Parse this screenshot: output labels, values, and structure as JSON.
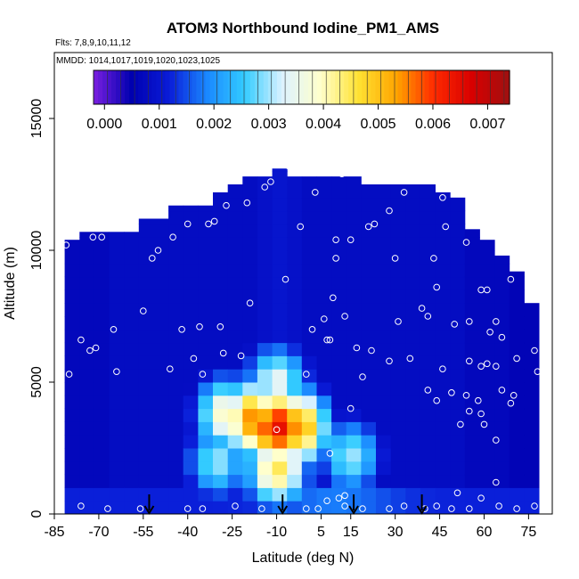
{
  "chart_data": {
    "type": "heatmap",
    "title": "ATOM3 Northbound Iodine_PM1_AMS",
    "flights_label": "Flts: 7,8,9,10,11,12",
    "dates_label": "MMDD: 1014,1017,1019,1020,1023,1025",
    "xlabel": "Latitude (deg N)",
    "ylabel": "Altitude (m)",
    "xlim": [
      -85,
      83
    ],
    "ylim": [
      0,
      17500
    ],
    "x_ticks": [
      -85,
      -70,
      -55,
      -40,
      -25,
      -10,
      5,
      15,
      30,
      45,
      60,
      75
    ],
    "y_ticks": [
      0,
      5000,
      10000,
      15000
    ],
    "colorbar": {
      "range": [
        -0.0002,
        0.0074
      ],
      "ticks": [
        "0.000",
        "0.001",
        "0.002",
        "0.003",
        "0.004",
        "0.005",
        "0.006",
        "0.007"
      ],
      "tick_values": [
        0,
        0.001,
        0.002,
        0.003,
        0.004,
        0.005,
        0.006,
        0.007
      ],
      "colors": [
        "#7a1fe0",
        "#0000b0",
        "#0a1cd8",
        "#1a88ff",
        "#33ccff",
        "#ddf2ff",
        "#ffffcc",
        "#ffe233",
        "#ffa500",
        "#ff2a00",
        "#d80000",
        "#a01010"
      ]
    },
    "colored_columns": [
      {
        "lat": -79,
        "top": 10400,
        "value": 0.0007
      },
      {
        "lat": -74,
        "top": 10700,
        "value": 0.0007
      },
      {
        "lat": -69,
        "top": 10700,
        "value": 0.0007
      },
      {
        "lat": -64,
        "top": 10700,
        "value": 0.0008
      },
      {
        "lat": -59,
        "top": 10700,
        "value": 0.0008
      },
      {
        "lat": -54,
        "top": 11200,
        "value": 0.0008
      },
      {
        "lat": -49,
        "top": 11200,
        "value": 0.0008
      },
      {
        "lat": -44,
        "top": 11700,
        "value": 0.0008
      },
      {
        "lat": -39,
        "top": 11700,
        "value": 0.0008
      },
      {
        "lat": -34,
        "top": 11700,
        "value": 0.0008
      },
      {
        "lat": -29,
        "top": 12200,
        "value": 0.0008
      },
      {
        "lat": -24,
        "top": 12500,
        "value": 0.0008
      },
      {
        "lat": -19,
        "top": 12800,
        "value": 0.0008
      },
      {
        "lat": -14,
        "top": 12800,
        "value": 0.0009
      },
      {
        "lat": -9,
        "top": 13100,
        "value": 0.001
      },
      {
        "lat": -4,
        "top": 12800,
        "value": 0.0009
      },
      {
        "lat": 1,
        "top": 12800,
        "value": 0.0008
      },
      {
        "lat": 6,
        "top": 12800,
        "value": 0.0008
      },
      {
        "lat": 11,
        "top": 12800,
        "value": 0.0008
      },
      {
        "lat": 16,
        "top": 12800,
        "value": 0.0008
      },
      {
        "lat": 21,
        "top": 12500,
        "value": 0.0008
      },
      {
        "lat": 26,
        "top": 12500,
        "value": 0.0008
      },
      {
        "lat": 31,
        "top": 12500,
        "value": 0.0008
      },
      {
        "lat": 36,
        "top": 12500,
        "value": 0.0008
      },
      {
        "lat": 41,
        "top": 12500,
        "value": 0.0008
      },
      {
        "lat": 46,
        "top": 12200,
        "value": 0.0008
      },
      {
        "lat": 51,
        "top": 12000,
        "value": 0.0008
      },
      {
        "lat": 56,
        "top": 10800,
        "value": 0.0007
      },
      {
        "lat": 61,
        "top": 10400,
        "value": 0.0007
      },
      {
        "lat": 66,
        "top": 9800,
        "value": 0.0007
      },
      {
        "lat": 71,
        "top": 9200,
        "value": 0.0006
      },
      {
        "lat": 76,
        "top": 8000,
        "value": 0.0006
      }
    ],
    "hotspots": [
      {
        "lat": -10,
        "alt": 3300,
        "value": 0.0065
      },
      {
        "lat": -18,
        "alt": 3600,
        "value": 0.0055
      },
      {
        "lat": -3,
        "alt": 3300,
        "value": 0.0055
      },
      {
        "lat": -27,
        "alt": 3800,
        "value": 0.004
      },
      {
        "lat": -10,
        "alt": 1700,
        "value": 0.0045
      },
      {
        "lat": -10,
        "alt": 5000,
        "value": 0.0035
      },
      {
        "lat": 15,
        "alt": 2200,
        "value": 0.003
      },
      {
        "lat": -30,
        "alt": 2000,
        "value": 0.003
      }
    ],
    "sample_points": [
      {
        "lat": -81,
        "alt": 10200
      },
      {
        "lat": -72,
        "alt": 10500
      },
      {
        "lat": -69,
        "alt": 10500
      },
      {
        "lat": -52,
        "alt": 9700
      },
      {
        "lat": -50,
        "alt": 10000
      },
      {
        "lat": -45,
        "alt": 10500
      },
      {
        "lat": -40,
        "alt": 11000
      },
      {
        "lat": -33,
        "alt": 11000
      },
      {
        "lat": -31,
        "alt": 11100
      },
      {
        "lat": -27,
        "alt": 11700
      },
      {
        "lat": -20,
        "alt": 11800
      },
      {
        "lat": -14,
        "alt": 12400
      },
      {
        "lat": -12,
        "alt": 12600
      },
      {
        "lat": -55,
        "alt": 11800
      },
      {
        "lat": -6,
        "alt": 13200
      },
      {
        "lat": 3,
        "alt": 12200
      },
      {
        "lat": 12,
        "alt": 12900
      },
      {
        "lat": 21,
        "alt": 10900
      },
      {
        "lat": 23,
        "alt": 11000
      },
      {
        "lat": 28,
        "alt": 11500
      },
      {
        "lat": 33,
        "alt": 12200
      },
      {
        "lat": 46,
        "alt": 12000
      },
      {
        "lat": -2,
        "alt": 10900
      },
      {
        "lat": 10,
        "alt": 10400
      },
      {
        "lat": 15,
        "alt": 10400
      },
      {
        "lat": 10,
        "alt": 9700
      },
      {
        "lat": 30,
        "alt": 9700
      },
      {
        "lat": 43,
        "alt": 9700
      },
      {
        "lat": 47,
        "alt": 10900
      },
      {
        "lat": 54,
        "alt": 10300
      },
      {
        "lat": -7,
        "alt": 8900
      },
      {
        "lat": 9,
        "alt": 8200
      },
      {
        "lat": 44,
        "alt": 8600
      },
      {
        "lat": 59,
        "alt": 8500
      },
      {
        "lat": 61,
        "alt": 8500
      },
      {
        "lat": 69,
        "alt": 8900
      },
      {
        "lat": -84,
        "alt": 7800
      },
      {
        "lat": -65,
        "alt": 7000
      },
      {
        "lat": -55,
        "alt": 7700
      },
      {
        "lat": -42,
        "alt": 7000
      },
      {
        "lat": -36,
        "alt": 7100
      },
      {
        "lat": -29,
        "alt": 7100
      },
      {
        "lat": -19,
        "alt": 8000
      },
      {
        "lat": 2,
        "alt": 7000
      },
      {
        "lat": 6,
        "alt": 7400
      },
      {
        "lat": 13,
        "alt": 7500
      },
      {
        "lat": 31,
        "alt": 7300
      },
      {
        "lat": 39,
        "alt": 7800
      },
      {
        "lat": 41,
        "alt": 7500
      },
      {
        "lat": 50,
        "alt": 7200
      },
      {
        "lat": 55,
        "alt": 7300
      },
      {
        "lat": 62,
        "alt": 6900
      },
      {
        "lat": 64,
        "alt": 7300
      },
      {
        "lat": 66,
        "alt": 6700
      },
      {
        "lat": -76,
        "alt": 6600
      },
      {
        "lat": -73,
        "alt": 6200
      },
      {
        "lat": -71,
        "alt": 6300
      },
      {
        "lat": -28,
        "alt": 6100
      },
      {
        "lat": -22,
        "alt": 6000
      },
      {
        "lat": -38,
        "alt": 5900
      },
      {
        "lat": -46,
        "alt": 5500
      },
      {
        "lat": 7,
        "alt": 6600
      },
      {
        "lat": 8,
        "alt": 6600
      },
      {
        "lat": 17,
        "alt": 6300
      },
      {
        "lat": 22,
        "alt": 6200
      },
      {
        "lat": 28,
        "alt": 5800
      },
      {
        "lat": 35,
        "alt": 5900
      },
      {
        "lat": 46,
        "alt": 5500
      },
      {
        "lat": 55,
        "alt": 5800
      },
      {
        "lat": 59,
        "alt": 5600
      },
      {
        "lat": 61,
        "alt": 5700
      },
      {
        "lat": 64,
        "alt": 5600
      },
      {
        "lat": 71,
        "alt": 5900
      },
      {
        "lat": 77,
        "alt": 6200
      },
      {
        "lat": -80,
        "alt": 5300
      },
      {
        "lat": -64,
        "alt": 5400
      },
      {
        "lat": -35,
        "alt": 5300
      },
      {
        "lat": 0,
        "alt": 5300
      },
      {
        "lat": 19,
        "alt": 5200
      },
      {
        "lat": 41,
        "alt": 4700
      },
      {
        "lat": 49,
        "alt": 4600
      },
      {
        "lat": 54,
        "alt": 4500
      },
      {
        "lat": 58,
        "alt": 4300
      },
      {
        "lat": 66,
        "alt": 4700
      },
      {
        "lat": 70,
        "alt": 4500
      },
      {
        "lat": 15,
        "alt": 4000
      },
      {
        "lat": 44,
        "alt": 4300
      },
      {
        "lat": 55,
        "alt": 3900
      },
      {
        "lat": 59,
        "alt": 3800
      },
      {
        "lat": 69,
        "alt": 4200
      },
      {
        "lat": 78,
        "alt": 5400
      },
      {
        "lat": 52,
        "alt": 3400
      },
      {
        "lat": 60,
        "alt": 3400
      },
      {
        "lat": -10,
        "alt": 3200
      },
      {
        "lat": 8,
        "alt": 2300
      },
      {
        "lat": 64,
        "alt": 2800
      },
      {
        "lat": 64,
        "alt": 1200
      },
      {
        "lat": -76,
        "alt": 300
      },
      {
        "lat": -67,
        "alt": 200
      },
      {
        "lat": -56,
        "alt": 200
      },
      {
        "lat": -40,
        "alt": 200
      },
      {
        "lat": -35,
        "alt": 200
      },
      {
        "lat": -24,
        "alt": 300
      },
      {
        "lat": -15,
        "alt": 200
      },
      {
        "lat": 0,
        "alt": 200
      },
      {
        "lat": 7,
        "alt": 500
      },
      {
        "lat": 11,
        "alt": 600
      },
      {
        "lat": 13,
        "alt": 700
      },
      {
        "lat": 13,
        "alt": 300
      },
      {
        "lat": 19,
        "alt": 200
      },
      {
        "lat": 28,
        "alt": 200
      },
      {
        "lat": 40,
        "alt": 200
      },
      {
        "lat": 44,
        "alt": 300
      },
      {
        "lat": 49,
        "alt": 200
      },
      {
        "lat": 55,
        "alt": 200
      },
      {
        "lat": 59,
        "alt": 600
      },
      {
        "lat": 65,
        "alt": 300
      },
      {
        "lat": 71,
        "alt": 200
      },
      {
        "lat": 77,
        "alt": 300
      },
      {
        "lat": 51,
        "alt": 800
      },
      {
        "lat": 4,
        "alt": 200
      },
      {
        "lat": 33,
        "alt": 300
      }
    ],
    "arrows_lat": [
      -53,
      -8,
      16,
      39
    ]
  }
}
